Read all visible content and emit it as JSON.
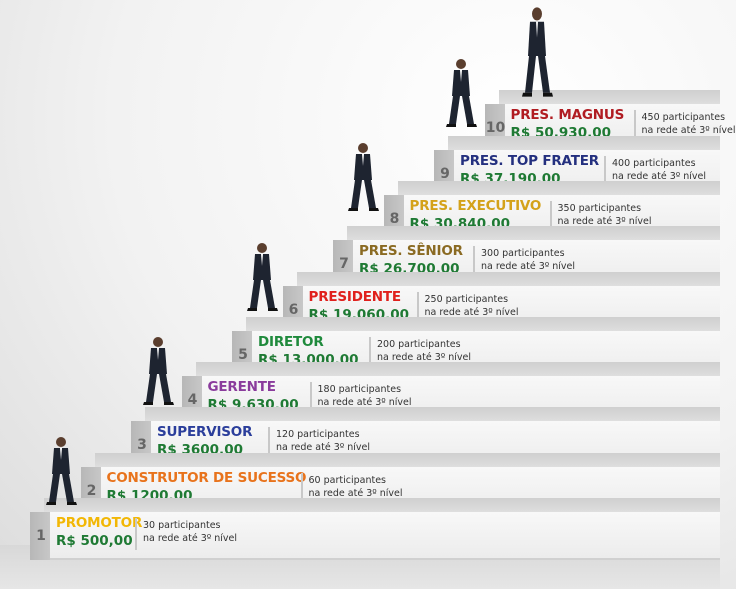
{
  "steps": [
    {
      "number": "1",
      "title": "PROMOTOR",
      "title_color": "#f2b705",
      "price": "R$ 500,00",
      "participants": "30 participantes",
      "network": "na rede até 3º nível"
    },
    {
      "number": "2",
      "title": "CONSTRUTOR DE SUCESSO",
      "title_color": "#e8731c",
      "price": "R$ 1200,00",
      "participants": "60 participantes",
      "network": "na rede até 3º nível"
    },
    {
      "number": "3",
      "title": "SUPERVISOR",
      "title_color": "#2b3e9b",
      "price": "R$ 3600,00",
      "participants": "120 participantes",
      "network": "na rede até 3º nível"
    },
    {
      "number": "4",
      "title": "GERENTE",
      "title_color": "#8a3b9c",
      "price": "R$ 9.630,00",
      "participants": "180 participantes",
      "network": "na rede até 3º nível"
    },
    {
      "number": "5",
      "title": "DIRETOR",
      "title_color": "#1f8a3c",
      "price": "R$ 13.000,00",
      "participants": "200 participantes",
      "network": "na rede até 3º nível"
    },
    {
      "number": "6",
      "title": "PRESIDENTE",
      "title_color": "#e0201c",
      "price": "R$ 19.060,00",
      "participants": "250 participantes",
      "network": "na rede até 3º nível"
    },
    {
      "number": "7",
      "title": "PRES. SÊNIOR",
      "title_color": "#8a6a22",
      "price": "R$ 26.700,00",
      "participants": "300 participantes",
      "network": "na rede até 3º nível"
    },
    {
      "number": "8",
      "title": "PRES. EXECUTIVO",
      "title_color": "#d4a21a",
      "price": "R$ 30.840,00",
      "participants": "350 participantes",
      "network": "na rede até 3º nível"
    },
    {
      "number": "9",
      "title": "PRES. TOP FRATER",
      "title_color": "#24307f",
      "price": "R$ 37.190,00",
      "participants": "400 participantes",
      "network": "na rede até 3º nível"
    },
    {
      "number": "10",
      "title": "PRES. MAGNUS",
      "title_color": "#b01c22",
      "price": "R$ 50.930,00",
      "participants": "450 participantes",
      "network": "na rede até 3º nível"
    }
  ],
  "colors": {
    "price": "#1f7a34",
    "suit": "#1e2430"
  }
}
